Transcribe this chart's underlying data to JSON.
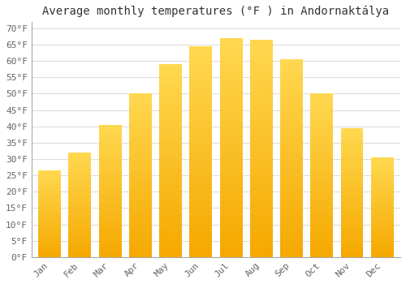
{
  "title": "Average monthly temperatures (°F ) in Andornaktálya",
  "months": [
    "Jan",
    "Feb",
    "Mar",
    "Apr",
    "May",
    "Jun",
    "Jul",
    "Aug",
    "Sep",
    "Oct",
    "Nov",
    "Dec"
  ],
  "values": [
    26.5,
    32.0,
    40.5,
    50.0,
    59.0,
    64.5,
    67.0,
    66.5,
    60.5,
    50.0,
    39.5,
    30.5
  ],
  "bar_color_bottom": "#F5A800",
  "bar_color_top": "#FFD040",
  "ylim": [
    0,
    72
  ],
  "yticks": [
    0,
    5,
    10,
    15,
    20,
    25,
    30,
    35,
    40,
    45,
    50,
    55,
    60,
    65,
    70
  ],
  "ytick_labels": [
    "0°F",
    "5°F",
    "10°F",
    "15°F",
    "20°F",
    "25°F",
    "30°F",
    "35°F",
    "40°F",
    "45°F",
    "50°F",
    "55°F",
    "60°F",
    "65°F",
    "70°F"
  ],
  "background_color": "#ffffff",
  "plot_bg_color": "#ffffff",
  "grid_color": "#dddddd",
  "title_fontsize": 10,
  "tick_fontsize": 8,
  "bar_width": 0.75,
  "font_family": "monospace"
}
